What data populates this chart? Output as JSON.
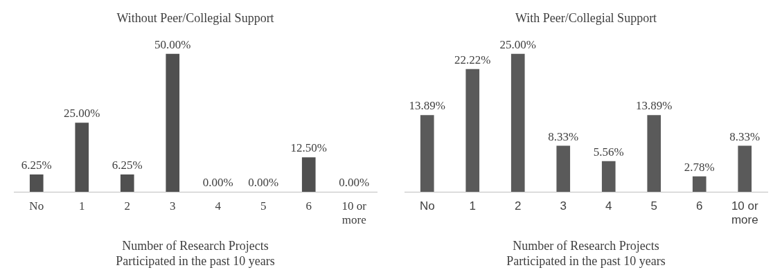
{
  "chart_data": [
    {
      "type": "bar",
      "title": "Without Peer/Collegial Support",
      "xlabel": "Number of Research Projects\nParticipated in the past 10 years",
      "categories": [
        "No",
        "1",
        "2",
        "3",
        "4",
        "5",
        "6",
        "10 or more"
      ],
      "values": [
        6.25,
        25.0,
        6.25,
        50.0,
        0.0,
        0.0,
        12.5,
        0.0
      ],
      "value_labels": [
        "6.25%",
        "25.00%",
        "6.25%",
        "50.00%",
        "0.00%",
        "0.00%",
        "12.50%",
        "0.00%"
      ],
      "color": "#505050",
      "tick_labels": "x",
      "grid": false,
      "legend": false
    },
    {
      "type": "bar",
      "title": "With Peer/Collegial Support",
      "xlabel": "Number of Research Projects\nParticipated in the past 10 years",
      "categories": [
        "No",
        "1",
        "2",
        "3",
        "4",
        "5",
        "6",
        "10 or more"
      ],
      "values": [
        13.89,
        22.22,
        25.0,
        8.33,
        5.56,
        13.89,
        2.78,
        8.33
      ],
      "value_labels": [
        "13.89%",
        "22.22%",
        "25.00%",
        "8.33%",
        "5.56%",
        "13.89%",
        "2.78%",
        "8.33%"
      ],
      "color": "#5a5a5a",
      "tick_labels": "x",
      "grid": false,
      "legend": false
    }
  ]
}
